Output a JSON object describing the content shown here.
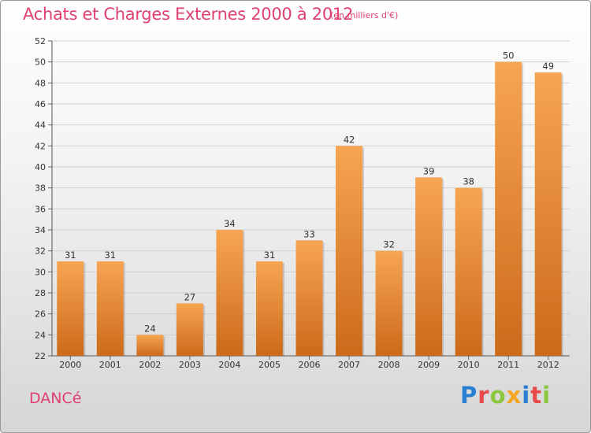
{
  "header": {
    "title": "Achats et Charges Externes 2000 à 2012",
    "subtitle": "(en milliers d'€)"
  },
  "footer": {
    "commune": "DANCé",
    "logo_letters": [
      {
        "char": "P",
        "color": "#2a7fd0"
      },
      {
        "char": "r",
        "color": "#e84a4a"
      },
      {
        "char": "o",
        "color": "#8cc63f"
      },
      {
        "char": "x",
        "color": "#f5a623"
      },
      {
        "char": "i",
        "color": "#2a7fd0"
      },
      {
        "char": "t",
        "color": "#e84a4a"
      },
      {
        "char": "i",
        "color": "#8cc63f"
      }
    ]
  },
  "colors": {
    "accent": "#e0406f",
    "bar_top": "#f7a552",
    "bar_bottom": "#cc6a1a"
  },
  "chart_data": {
    "type": "bar",
    "categories": [
      "2000",
      "2001",
      "2002",
      "2003",
      "2004",
      "2005",
      "2006",
      "2007",
      "2008",
      "2009",
      "2010",
      "2011",
      "2012"
    ],
    "values": [
      31,
      31,
      24,
      27,
      34,
      31,
      33,
      42,
      32,
      39,
      38,
      50,
      49
    ],
    "ylim": [
      22,
      52
    ],
    "yticks": [
      22,
      24,
      26,
      28,
      30,
      32,
      34,
      36,
      38,
      40,
      42,
      44,
      46,
      48,
      50,
      52
    ],
    "grid": true
  }
}
